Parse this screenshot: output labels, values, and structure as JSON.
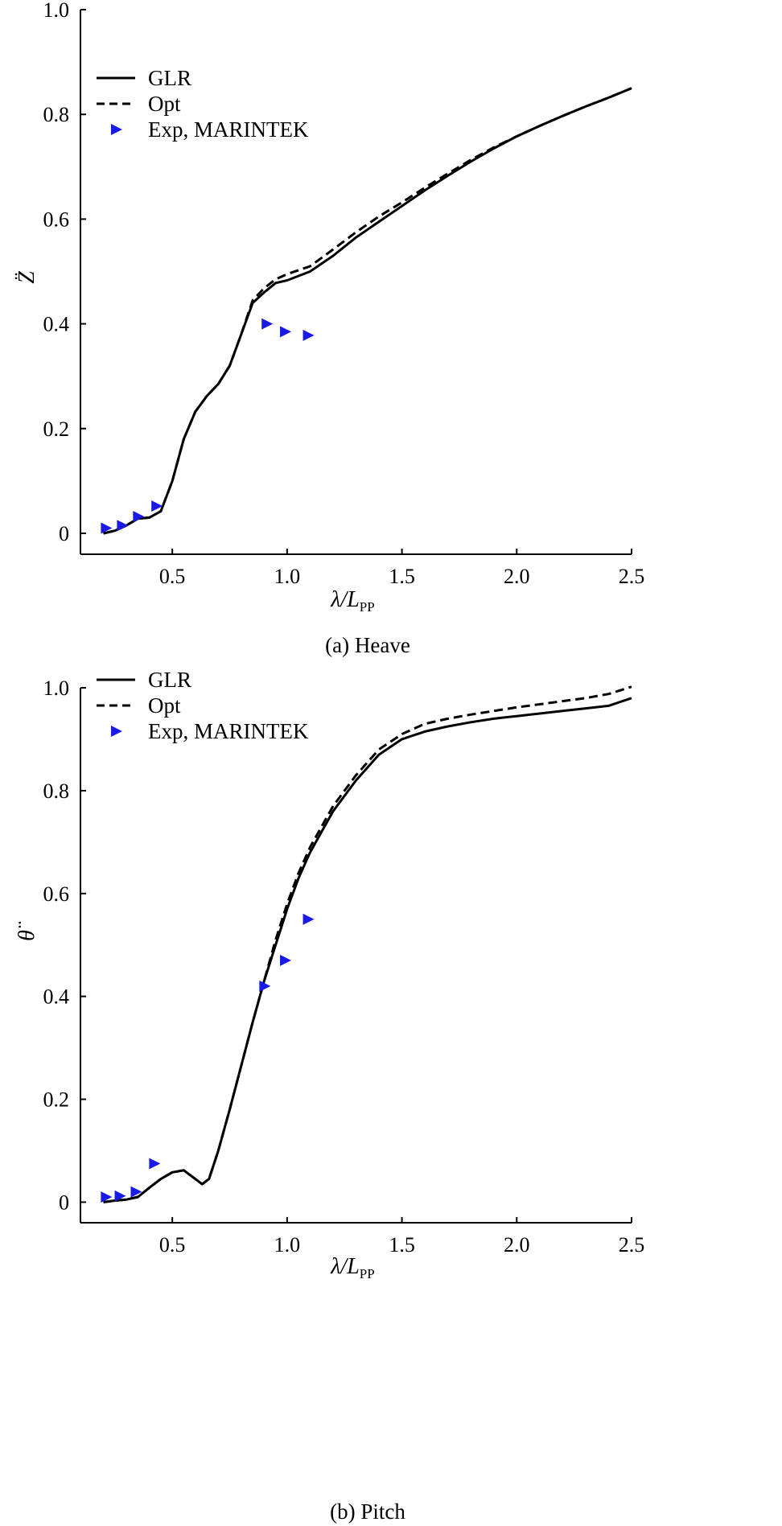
{
  "chart_data": [
    {
      "type": "line",
      "caption": "(a) Heave",
      "xlabel": "λ/L",
      "xlabel_sub": "PP",
      "ylabel": "Z̈",
      "xlim": [
        0.1,
        2.5
      ],
      "ylim": [
        -0.04,
        1.0
      ],
      "xticks": [
        0.5,
        1.0,
        1.5,
        2.0,
        2.5
      ],
      "xtick_labels": [
        "0.5",
        "1.0",
        "1.5",
        "2.0",
        "2.5"
      ],
      "yticks": [
        0,
        0.2,
        0.4,
        0.6,
        0.8,
        1.0
      ],
      "ytick_labels": [
        "0",
        "0.2",
        "0.4",
        "0.6",
        "0.8",
        "1.0"
      ],
      "legend_position": "top-left",
      "series": [
        {
          "name": "GLR",
          "style": "solid",
          "color": "#000000",
          "x": [
            0.2,
            0.25,
            0.3,
            0.35,
            0.4,
            0.45,
            0.5,
            0.55,
            0.6,
            0.65,
            0.7,
            0.75,
            0.8,
            0.85,
            0.9,
            0.95,
            1.0,
            1.1,
            1.2,
            1.3,
            1.4,
            1.5,
            1.6,
            1.7,
            1.8,
            1.9,
            2.0,
            2.1,
            2.2,
            2.3,
            2.4,
            2.5
          ],
          "y": [
            0.0,
            0.005,
            0.015,
            0.028,
            0.03,
            0.042,
            0.1,
            0.18,
            0.232,
            0.262,
            0.285,
            0.32,
            0.38,
            0.44,
            0.46,
            0.478,
            0.483,
            0.5,
            0.53,
            0.565,
            0.595,
            0.625,
            0.655,
            0.683,
            0.71,
            0.735,
            0.758,
            0.778,
            0.797,
            0.815,
            0.832,
            0.85
          ]
        },
        {
          "name": "Opt",
          "style": "dashed",
          "color": "#000000",
          "x": [
            0.2,
            0.25,
            0.3,
            0.35,
            0.4,
            0.45,
            0.5,
            0.55,
            0.6,
            0.65,
            0.7,
            0.75,
            0.8,
            0.85,
            0.9,
            0.95,
            1.0,
            1.1,
            1.2,
            1.3,
            1.4,
            1.5,
            1.6,
            1.7,
            1.8,
            1.9,
            2.0,
            2.1,
            2.2,
            2.3,
            2.4,
            2.5
          ],
          "y": [
            0.0,
            0.005,
            0.015,
            0.028,
            0.03,
            0.042,
            0.1,
            0.18,
            0.232,
            0.262,
            0.285,
            0.32,
            0.38,
            0.445,
            0.468,
            0.485,
            0.495,
            0.51,
            0.542,
            0.575,
            0.605,
            0.632,
            0.66,
            0.687,
            0.713,
            0.737,
            0.758,
            0.778,
            0.797,
            0.815,
            0.832,
            0.85
          ]
        },
        {
          "name": "Exp, MARINTEK",
          "style": "marker",
          "color": "#1a1ae6",
          "x": [
            0.21,
            0.28,
            0.35,
            0.43,
            0.91,
            0.99,
            1.09
          ],
          "y": [
            0.01,
            0.015,
            0.032,
            0.052,
            0.4,
            0.385,
            0.378
          ]
        }
      ]
    },
    {
      "type": "line",
      "caption": "(b) Pitch",
      "xlabel": "λ/L",
      "xlabel_sub": "PP",
      "ylabel": "θ̈",
      "xlim": [
        0.1,
        2.5
      ],
      "ylim": [
        -0.04,
        1.0
      ],
      "xticks": [
        0.5,
        1.0,
        1.5,
        2.0,
        2.5
      ],
      "xtick_labels": [
        "0.5",
        "1.0",
        "1.5",
        "2.0",
        "2.5"
      ],
      "yticks": [
        0,
        0.2,
        0.4,
        0.6,
        0.8,
        1.0
      ],
      "ytick_labels": [
        "0",
        "0.2",
        "0.4",
        "0.6",
        "0.8",
        "1.0"
      ],
      "legend_position": "top-left",
      "series": [
        {
          "name": "GLR",
          "style": "solid",
          "color": "#000000",
          "x": [
            0.2,
            0.25,
            0.3,
            0.35,
            0.4,
            0.45,
            0.5,
            0.55,
            0.6,
            0.63,
            0.66,
            0.7,
            0.75,
            0.8,
            0.85,
            0.9,
            0.95,
            1.0,
            1.05,
            1.1,
            1.2,
            1.3,
            1.4,
            1.5,
            1.6,
            1.7,
            1.8,
            1.9,
            2.0,
            2.1,
            2.2,
            2.3,
            2.4,
            2.5
          ],
          "y": [
            0.0,
            0.003,
            0.005,
            0.01,
            0.028,
            0.045,
            0.058,
            0.062,
            0.045,
            0.035,
            0.045,
            0.1,
            0.18,
            0.265,
            0.35,
            0.43,
            0.5,
            0.57,
            0.63,
            0.68,
            0.76,
            0.82,
            0.87,
            0.9,
            0.915,
            0.925,
            0.933,
            0.94,
            0.945,
            0.95,
            0.955,
            0.96,
            0.965,
            0.98
          ]
        },
        {
          "name": "Opt",
          "style": "dashed",
          "color": "#000000",
          "x": [
            0.2,
            0.25,
            0.3,
            0.35,
            0.4,
            0.45,
            0.5,
            0.55,
            0.6,
            0.63,
            0.66,
            0.7,
            0.75,
            0.8,
            0.85,
            0.9,
            0.95,
            1.0,
            1.05,
            1.1,
            1.2,
            1.3,
            1.4,
            1.5,
            1.6,
            1.7,
            1.8,
            1.9,
            2.0,
            2.1,
            2.2,
            2.3,
            2.4,
            2.5
          ],
          "y": [
            0.0,
            0.003,
            0.005,
            0.01,
            0.028,
            0.045,
            0.058,
            0.062,
            0.045,
            0.035,
            0.045,
            0.1,
            0.18,
            0.265,
            0.35,
            0.43,
            0.51,
            0.58,
            0.64,
            0.69,
            0.77,
            0.83,
            0.88,
            0.91,
            0.93,
            0.94,
            0.948,
            0.955,
            0.962,
            0.968,
            0.974,
            0.98,
            0.988,
            1.002
          ]
        },
        {
          "name": "Exp, MARINTEK",
          "style": "marker",
          "color": "#1a1ae6",
          "x": [
            0.21,
            0.27,
            0.34,
            0.42,
            0.9,
            0.99,
            1.09
          ],
          "y": [
            0.01,
            0.012,
            0.02,
            0.075,
            0.42,
            0.47,
            0.55
          ]
        }
      ]
    }
  ]
}
